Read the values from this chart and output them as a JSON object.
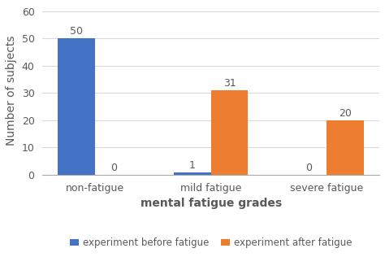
{
  "categories": [
    "non-fatigue",
    "mild fatigue",
    "severe fatigue"
  ],
  "before_fatigue": [
    50,
    1,
    0
  ],
  "after_fatigue": [
    0,
    31,
    20
  ],
  "before_color": "#4472C4",
  "after_color": "#ED7D31",
  "xlabel": "mental fatigue grades",
  "ylabel": "Number of subjects",
  "ylim": [
    0,
    62
  ],
  "yticks": [
    0,
    10,
    20,
    30,
    40,
    50,
    60
  ],
  "bar_width": 0.32,
  "legend_labels": [
    "experiment before fatigue",
    "experiment after fatigue"
  ],
  "background_color": "#ffffff",
  "label_fontsize": 10,
  "tick_fontsize": 9,
  "annotation_fontsize": 9,
  "text_color": "#595959",
  "grid_color": "#d9d9d9"
}
